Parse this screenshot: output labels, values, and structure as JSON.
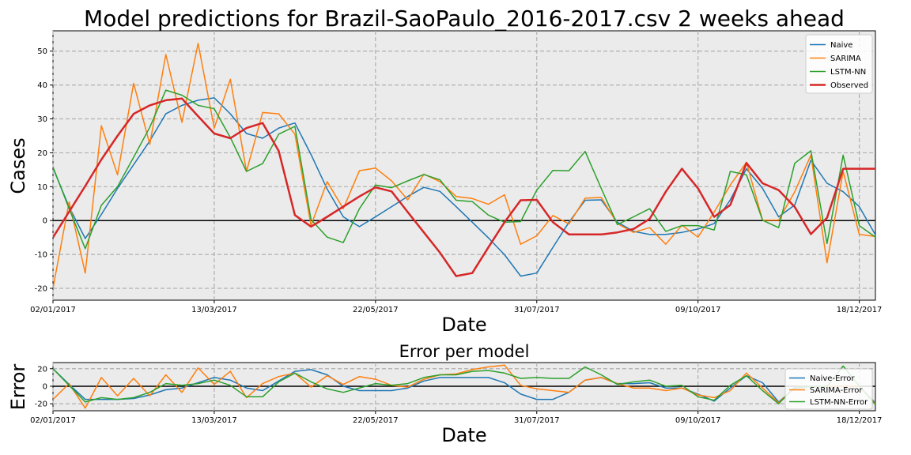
{
  "chart_data": [
    {
      "type": "line",
      "title": "Model predictions for Brazil-SaoPaulo_2016-2017.csv 2 weeks ahead",
      "xlabel": "Date",
      "ylabel": "Cases",
      "xlim": [
        0,
        51
      ],
      "ylim": [
        -23.5,
        56
      ],
      "yticks": [
        -20,
        -10,
        0,
        10,
        20,
        30,
        40,
        50
      ],
      "x_ticks": [
        {
          "x": 0,
          "label": "02/01/2017"
        },
        {
          "x": 10,
          "label": "13/03/2017"
        },
        {
          "x": 20,
          "label": "22/05/2017"
        },
        {
          "x": 30,
          "label": "31/07/2017"
        },
        {
          "x": 40,
          "label": "09/10/2017"
        },
        {
          "x": 50,
          "label": "18/12/2017"
        }
      ],
      "grid": true,
      "legend": "top-right",
      "series": [
        {
          "name": "Naive",
          "color": "#1f77b4",
          "width": 1.5,
          "x": [
            0,
            1,
            2,
            3,
            4,
            5,
            6,
            7,
            8,
            9,
            10,
            11,
            12,
            13,
            14,
            15,
            16,
            17,
            18,
            19,
            20,
            21,
            22,
            23,
            24,
            25,
            26,
            27,
            28,
            29,
            30,
            31,
            32,
            33,
            34,
            35,
            36,
            37,
            38,
            39,
            40,
            41,
            42,
            43,
            44,
            45,
            46,
            47,
            48,
            49,
            50,
            51
          ],
          "values": [
            15.5,
            4,
            -5.3,
            1.8,
            9.5,
            16.5,
            23.5,
            31.5,
            34,
            35.5,
            36.2,
            31.5,
            25.7,
            24.3,
            27.3,
            28.8,
            19.5,
            9.3,
            1.1,
            -1.8,
            1.1,
            4.1,
            7.1,
            9.8,
            8.6,
            4.1,
            -0.5,
            -5.1,
            -10.1,
            -16.4,
            -15.5,
            -7.9,
            -0.5,
            6,
            6.1,
            -0.5,
            -3.2,
            -4.1,
            -4.1,
            -3.5,
            -2.5,
            -0.9,
            6.1,
            15.3,
            9.5,
            1.1,
            4.6,
            17.8,
            11,
            8.5,
            4.1,
            -4.2
          ]
        },
        {
          "name": "SARIMA",
          "color": "#ff7f0e",
          "width": 1.5,
          "x": [
            0,
            1,
            2,
            3,
            4,
            5,
            6,
            7,
            8,
            9,
            10,
            11,
            12,
            13,
            14,
            15,
            16,
            17,
            18,
            19,
            20,
            21,
            22,
            23,
            24,
            25,
            26,
            27,
            28,
            29,
            30,
            31,
            32,
            33,
            34,
            35,
            36,
            37,
            38,
            39,
            40,
            41,
            42,
            43,
            44,
            45,
            46,
            47,
            48,
            49,
            50,
            51
          ],
          "values": [
            -20,
            5.5,
            -15.5,
            28,
            13.5,
            40.5,
            22.5,
            49,
            29,
            52.3,
            27.3,
            41.7,
            14.5,
            31.9,
            31.5,
            25.5,
            -1.5,
            11.5,
            3.5,
            14.7,
            15.5,
            11.7,
            6.1,
            13.7,
            11.5,
            7.1,
            6.5,
            4.8,
            7.6,
            -7,
            -4.5,
            1.5,
            -1,
            6.6,
            6.8,
            -0.9,
            -3.5,
            -2.1,
            -7,
            -1.4,
            -4.9,
            2.5,
            10.5,
            17.2,
            0.1,
            0.1,
            8.5,
            19.3,
            -12.5,
            14.5,
            -4.1,
            -4.7
          ]
        },
        {
          "name": "LSTM-NN",
          "color": "#2ca02c",
          "width": 1.5,
          "x": [
            0,
            1,
            2,
            3,
            4,
            5,
            6,
            7,
            8,
            9,
            10,
            11,
            12,
            13,
            14,
            15,
            16,
            17,
            18,
            19,
            20,
            21,
            22,
            23,
            24,
            25,
            26,
            27,
            28,
            29,
            30,
            31,
            32,
            33,
            34,
            35,
            36,
            37,
            38,
            39,
            40,
            41,
            42,
            43,
            44,
            45,
            46,
            47,
            48,
            49,
            50,
            51
          ],
          "values": [
            15.8,
            3.5,
            -8.3,
            4.5,
            10,
            18.7,
            27.5,
            38.5,
            37,
            34,
            33,
            24.5,
            14.5,
            16.8,
            25.5,
            27.8,
            0.3,
            -4.9,
            -6.5,
            3.5,
            10.5,
            9.7,
            11.7,
            13.6,
            12,
            6,
            5.6,
            1.6,
            -0.5,
            -0.3,
            9,
            14.8,
            14.7,
            20.4,
            9.5,
            -1.2,
            1.1,
            3.5,
            -3.2,
            -1.5,
            -1.5,
            -2.8,
            14.5,
            13.5,
            0.1,
            -2.1,
            16.9,
            20.6,
            -6.8,
            19.3,
            -1.5,
            -4.9
          ]
        },
        {
          "name": "Observed",
          "color": "#d62728",
          "width": 2.5,
          "x": [
            0,
            1,
            2,
            3,
            4,
            5,
            6,
            7,
            8,
            9,
            10,
            11,
            12,
            13,
            14,
            15,
            16,
            17,
            18,
            19,
            20,
            21,
            22,
            23,
            24,
            25,
            26,
            27,
            28,
            29,
            30,
            31,
            32,
            33,
            34,
            35,
            36,
            37,
            38,
            39,
            40,
            41,
            42,
            43,
            44,
            45,
            46,
            47,
            48,
            49,
            50,
            51
          ],
          "values": [
            -5,
            2.6,
            10.2,
            18,
            25,
            31.5,
            34,
            35.5,
            36,
            30.8,
            25.7,
            24.3,
            27.3,
            28.8,
            20.5,
            1.6,
            -1.8,
            1.1,
            4.1,
            7.1,
            9.8,
            8.6,
            2.5,
            -3.5,
            -9.5,
            -16.4,
            -15.5,
            -7.9,
            -0.5,
            6,
            6.1,
            -0.5,
            -4.1,
            -4.1,
            -4.1,
            -3.5,
            -2.5,
            0.5,
            8.5,
            15.3,
            9.5,
            1.1,
            4.6,
            17,
            11,
            9,
            4,
            -4,
            0.8,
            15.3,
            15.3,
            15.3
          ]
        }
      ]
    },
    {
      "type": "line",
      "title": "Error per model",
      "xlabel": "Date",
      "ylabel": "Error",
      "xlim": [
        0,
        51
      ],
      "ylim": [
        -28,
        27
      ],
      "yticks": [
        -20,
        0,
        20
      ],
      "x_ticks": [
        {
          "x": 0,
          "label": "02/01/2017"
        },
        {
          "x": 10,
          "label": "13/03/2017"
        },
        {
          "x": 20,
          "label": "22/05/2017"
        },
        {
          "x": 30,
          "label": "31/07/2017"
        },
        {
          "x": 40,
          "label": "09/10/2017"
        },
        {
          "x": 50,
          "label": "18/12/2017"
        }
      ],
      "grid": true,
      "legend": "right",
      "series": [
        {
          "name": "Naive-Error",
          "color": "#1f77b4",
          "width": 1.5,
          "x": [
            0,
            1,
            2,
            3,
            4,
            5,
            6,
            7,
            8,
            9,
            10,
            11,
            12,
            13,
            14,
            15,
            16,
            17,
            18,
            19,
            20,
            21,
            22,
            23,
            24,
            25,
            26,
            27,
            28,
            29,
            30,
            31,
            32,
            33,
            34,
            35,
            36,
            37,
            38,
            39,
            40,
            41,
            42,
            43,
            44,
            45,
            46,
            47,
            48,
            49,
            50,
            51
          ],
          "values": [
            20,
            2,
            -15,
            -15,
            -15,
            -14,
            -10,
            -4,
            -2,
            4,
            10,
            7,
            -2,
            -5,
            6,
            17,
            19,
            13,
            0,
            -5,
            -5,
            -5,
            -2,
            6,
            10,
            10,
            10,
            10,
            4,
            -9,
            -15,
            -15,
            -7,
            7,
            10,
            3,
            3,
            4,
            -2,
            -2,
            -9,
            -17,
            -2,
            12,
            4,
            -18,
            -2,
            -0.7,
            -0.5,
            -0.3,
            -0.1,
            -19
          ]
        },
        {
          "name": "SARIMA-Error",
          "color": "#ff7f0e",
          "width": 1.5,
          "x": [
            0,
            1,
            2,
            3,
            4,
            5,
            6,
            7,
            8,
            9,
            10,
            11,
            12,
            13,
            14,
            15,
            16,
            17,
            18,
            19,
            20,
            21,
            22,
            23,
            24,
            25,
            26,
            27,
            28,
            29,
            30,
            31,
            32,
            33,
            34,
            35,
            36,
            37,
            38,
            39,
            40,
            41,
            42,
            43,
            44,
            45,
            46,
            47,
            48,
            49,
            50,
            51
          ],
          "values": [
            -15,
            3,
            -25,
            10,
            -11,
            9,
            -11,
            13,
            -7,
            21,
            2,
            17,
            -13,
            3,
            11,
            15,
            -1,
            12,
            2,
            11,
            8,
            1,
            -1,
            8,
            13,
            14,
            19,
            22,
            24,
            1,
            -3,
            -5,
            -7,
            7,
            10,
            3,
            -2,
            -2,
            -5,
            -2,
            -10,
            -13,
            -5,
            15,
            -2,
            -19,
            -1,
            -0.5,
            -0.3,
            -0.1,
            0.1,
            -20
          ]
        },
        {
          "name": "LSTM-NN-Error",
          "color": "#2ca02c",
          "width": 1.5,
          "x": [
            0,
            1,
            2,
            3,
            4,
            5,
            6,
            7,
            8,
            9,
            10,
            11,
            12,
            13,
            14,
            15,
            16,
            17,
            18,
            19,
            20,
            21,
            22,
            23,
            24,
            25,
            26,
            27,
            28,
            29,
            30,
            31,
            32,
            33,
            34,
            35,
            36,
            37,
            38,
            39,
            40,
            41,
            42,
            43,
            44,
            45,
            46,
            47,
            48,
            49,
            50,
            51
          ],
          "values": [
            20,
            1,
            -18,
            -13,
            -15,
            -13,
            -7,
            3,
            1,
            3,
            7,
            1,
            -12,
            -12,
            5,
            15,
            5,
            -3,
            -7,
            -2,
            3,
            1,
            3,
            10,
            13,
            13,
            17,
            18,
            15,
            9,
            10,
            9,
            9,
            22,
            13,
            2,
            5,
            7,
            0,
            1,
            -12,
            -16,
            1,
            12,
            -5,
            -20,
            -1,
            -0.5,
            -0.3,
            23,
            0.1,
            -21
          ]
        }
      ]
    }
  ]
}
